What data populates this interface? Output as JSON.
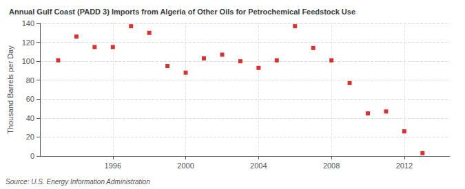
{
  "chart_data": {
    "type": "scatter",
    "title": "Annual Gulf Coast (PADD 3) Imports from Algeria of Other Oils for Petrochemical Feedstock Use",
    "ylabel": "Thousand Barrels per Day",
    "source": "Source: U.S. Energy Information Administration",
    "x": [
      1993,
      1994,
      1995,
      1996,
      1997,
      1998,
      1999,
      2000,
      2001,
      2002,
      2003,
      2004,
      2005,
      2006,
      2007,
      2008,
      2009,
      2010,
      2011,
      2012,
      2013
    ],
    "values": [
      101,
      126,
      115,
      115,
      137,
      130,
      95,
      88,
      103,
      107,
      100,
      93,
      101,
      137,
      114,
      101,
      77,
      45,
      47,
      26,
      3
    ],
    "color": "#cc0000",
    "marker": "square",
    "xlim": [
      1992.0,
      2014.5
    ],
    "xticks": [
      1996,
      2000,
      2004,
      2008,
      2012
    ],
    "ylim": [
      0,
      140
    ],
    "yticks": [
      0,
      20,
      40,
      60,
      80,
      100,
      120,
      140
    ],
    "grid": true
  }
}
